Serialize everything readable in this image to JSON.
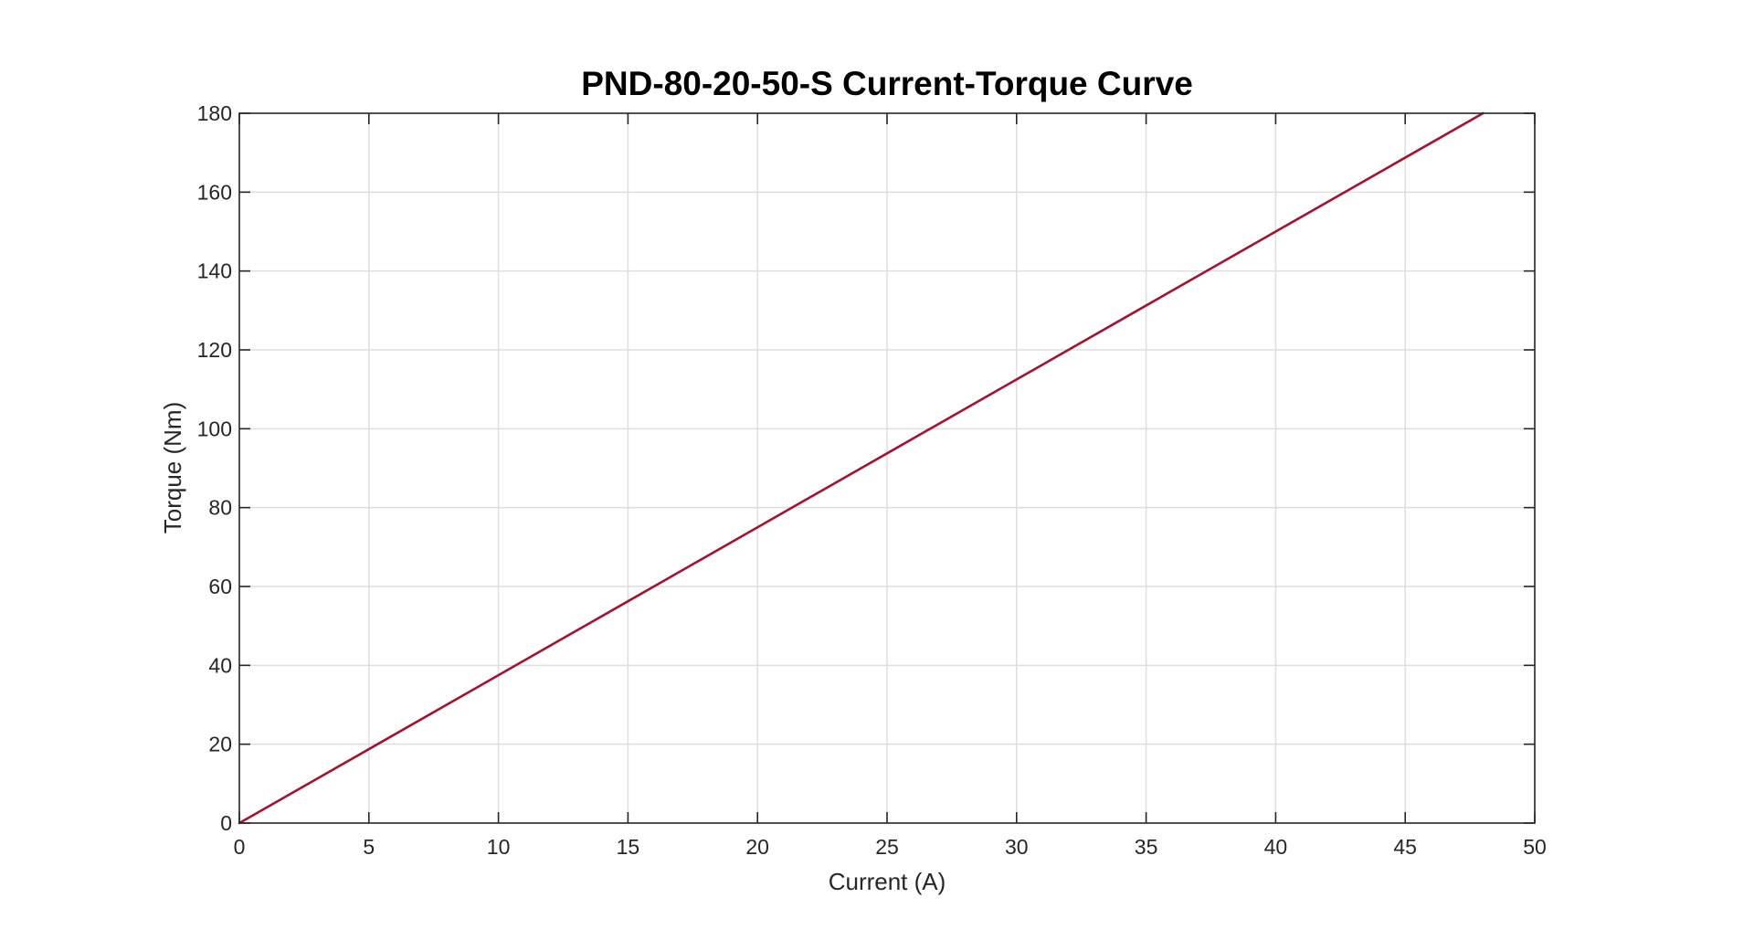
{
  "chart_data": {
    "type": "line",
    "title": "PND-80-20-50-S Current-Torque Curve",
    "xlabel": "Current (A)",
    "ylabel": "Torque (Nm)",
    "xlim": [
      0,
      50
    ],
    "ylim": [
      0,
      180
    ],
    "xticks": [
      0,
      5,
      10,
      15,
      20,
      25,
      30,
      35,
      40,
      45,
      50
    ],
    "yticks": [
      0,
      20,
      40,
      60,
      80,
      100,
      120,
      140,
      160,
      180
    ],
    "xtick_labels": [
      "0",
      "5",
      "10",
      "15",
      "20",
      "25",
      "30",
      "35",
      "40",
      "45",
      "50"
    ],
    "ytick_labels": [
      "0",
      "20",
      "40",
      "60",
      "80",
      "100",
      "120",
      "140",
      "160",
      "180"
    ],
    "grid": true,
    "legend": "none",
    "series": [
      {
        "color": "#a2142f",
        "x": [
          0,
          5,
          10,
          15,
          20,
          25,
          30,
          35,
          40,
          45,
          48
        ],
        "y": [
          0,
          18.75,
          37.5,
          56.25,
          75,
          93.75,
          112.5,
          131.25,
          150,
          168.75,
          180
        ]
      }
    ]
  }
}
